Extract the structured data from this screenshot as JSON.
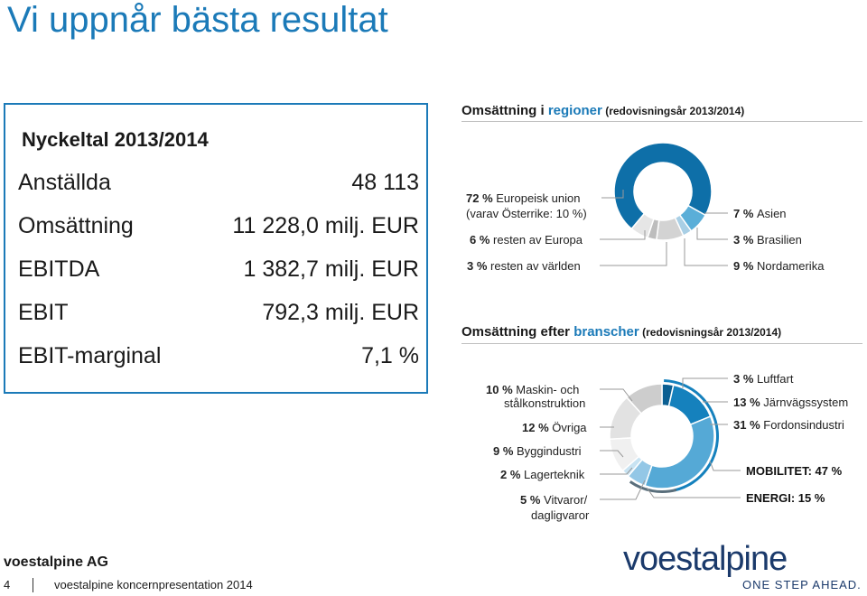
{
  "page": {
    "title": "Vi uppnår bästa resultat"
  },
  "kpi": {
    "heading": "Nyckeltal 2013/2014",
    "rows": [
      {
        "label": "Anställda",
        "value": "48 113"
      },
      {
        "label": "Omsättning",
        "value": "11 228,0 milj. EUR"
      },
      {
        "label": "EBITDA",
        "value": "1 382,7 milj. EUR"
      },
      {
        "label": "EBIT",
        "value": "792,3 milj. EUR"
      },
      {
        "label": "EBIT-marginal",
        "value": "7,1 %"
      }
    ]
  },
  "chart_data": [
    {
      "type": "pie",
      "title_prefix": "Omsättning i ",
      "title_highlight": "regioner",
      "title_suffix": " (redovisningsår 2013/2014)",
      "slices": [
        {
          "pct": "72 %",
          "value": 72,
          "label": "Europeisk union",
          "label2": "(varav Österrike: 10 %)",
          "color": "#0e6fa8"
        },
        {
          "pct": "7 %",
          "value": 7,
          "label": "Asien",
          "color": "#5aaed8"
        },
        {
          "pct": "3 %",
          "value": 3,
          "label": "Brasilien",
          "color": "#a9cfe5"
        },
        {
          "pct": "9 %",
          "value": 9,
          "label": "Nordamerika",
          "color": "#d3d3d3"
        },
        {
          "pct": "3 %",
          "value": 3,
          "label": "resten av världen",
          "color": "#bdbdbd"
        },
        {
          "pct": "6 %",
          "value": 6,
          "label": "resten av Europa",
          "color": "#e6e6e6"
        }
      ]
    },
    {
      "type": "pie",
      "title_prefix": "Omsättning efter ",
      "title_highlight": "branscher",
      "title_suffix": " (redovisningsår 2013/2014)",
      "slices": [
        {
          "pct": "3 %",
          "value": 3,
          "label": "Luftfart",
          "color": "#0b5f92"
        },
        {
          "pct": "13 %",
          "value": 13,
          "label": "Järnvägssystem",
          "color": "#1581bd"
        },
        {
          "pct": "31 %",
          "value": 31,
          "label": "Fordonsindustri",
          "color": "#55a9d6"
        },
        {
          "pct": "5 %",
          "value": 5,
          "label": "Vitvaror/",
          "label2": "dagligvaror",
          "color": "#93c7e6"
        },
        {
          "pct": "2 %",
          "value": 2,
          "label": "Lagerteknik",
          "color": "#c8e3f2"
        },
        {
          "pct": "9 %",
          "value": 9,
          "label": "Byggindustri",
          "color": "#f0f0f0"
        },
        {
          "pct": "12 %",
          "value": 12,
          "label": "Övriga",
          "color": "#e2e2e2"
        },
        {
          "pct": "10 %",
          "value": 10,
          "label": "Maskin- och",
          "label2": "stålkonstruktion",
          "color": "#cdcdcd"
        }
      ],
      "groups": [
        {
          "label": "MOBILITET: 47 %",
          "color": "#1581bd"
        },
        {
          "label": "ENERGI: 15 %",
          "color": "#5a6f7c"
        }
      ]
    }
  ],
  "footer": {
    "company": "voestalpine AG",
    "page_number": "4",
    "presentation": "voestalpine koncernpresentation 2014",
    "logo": "voestalpine",
    "tagline": "ONE STEP AHEAD."
  }
}
